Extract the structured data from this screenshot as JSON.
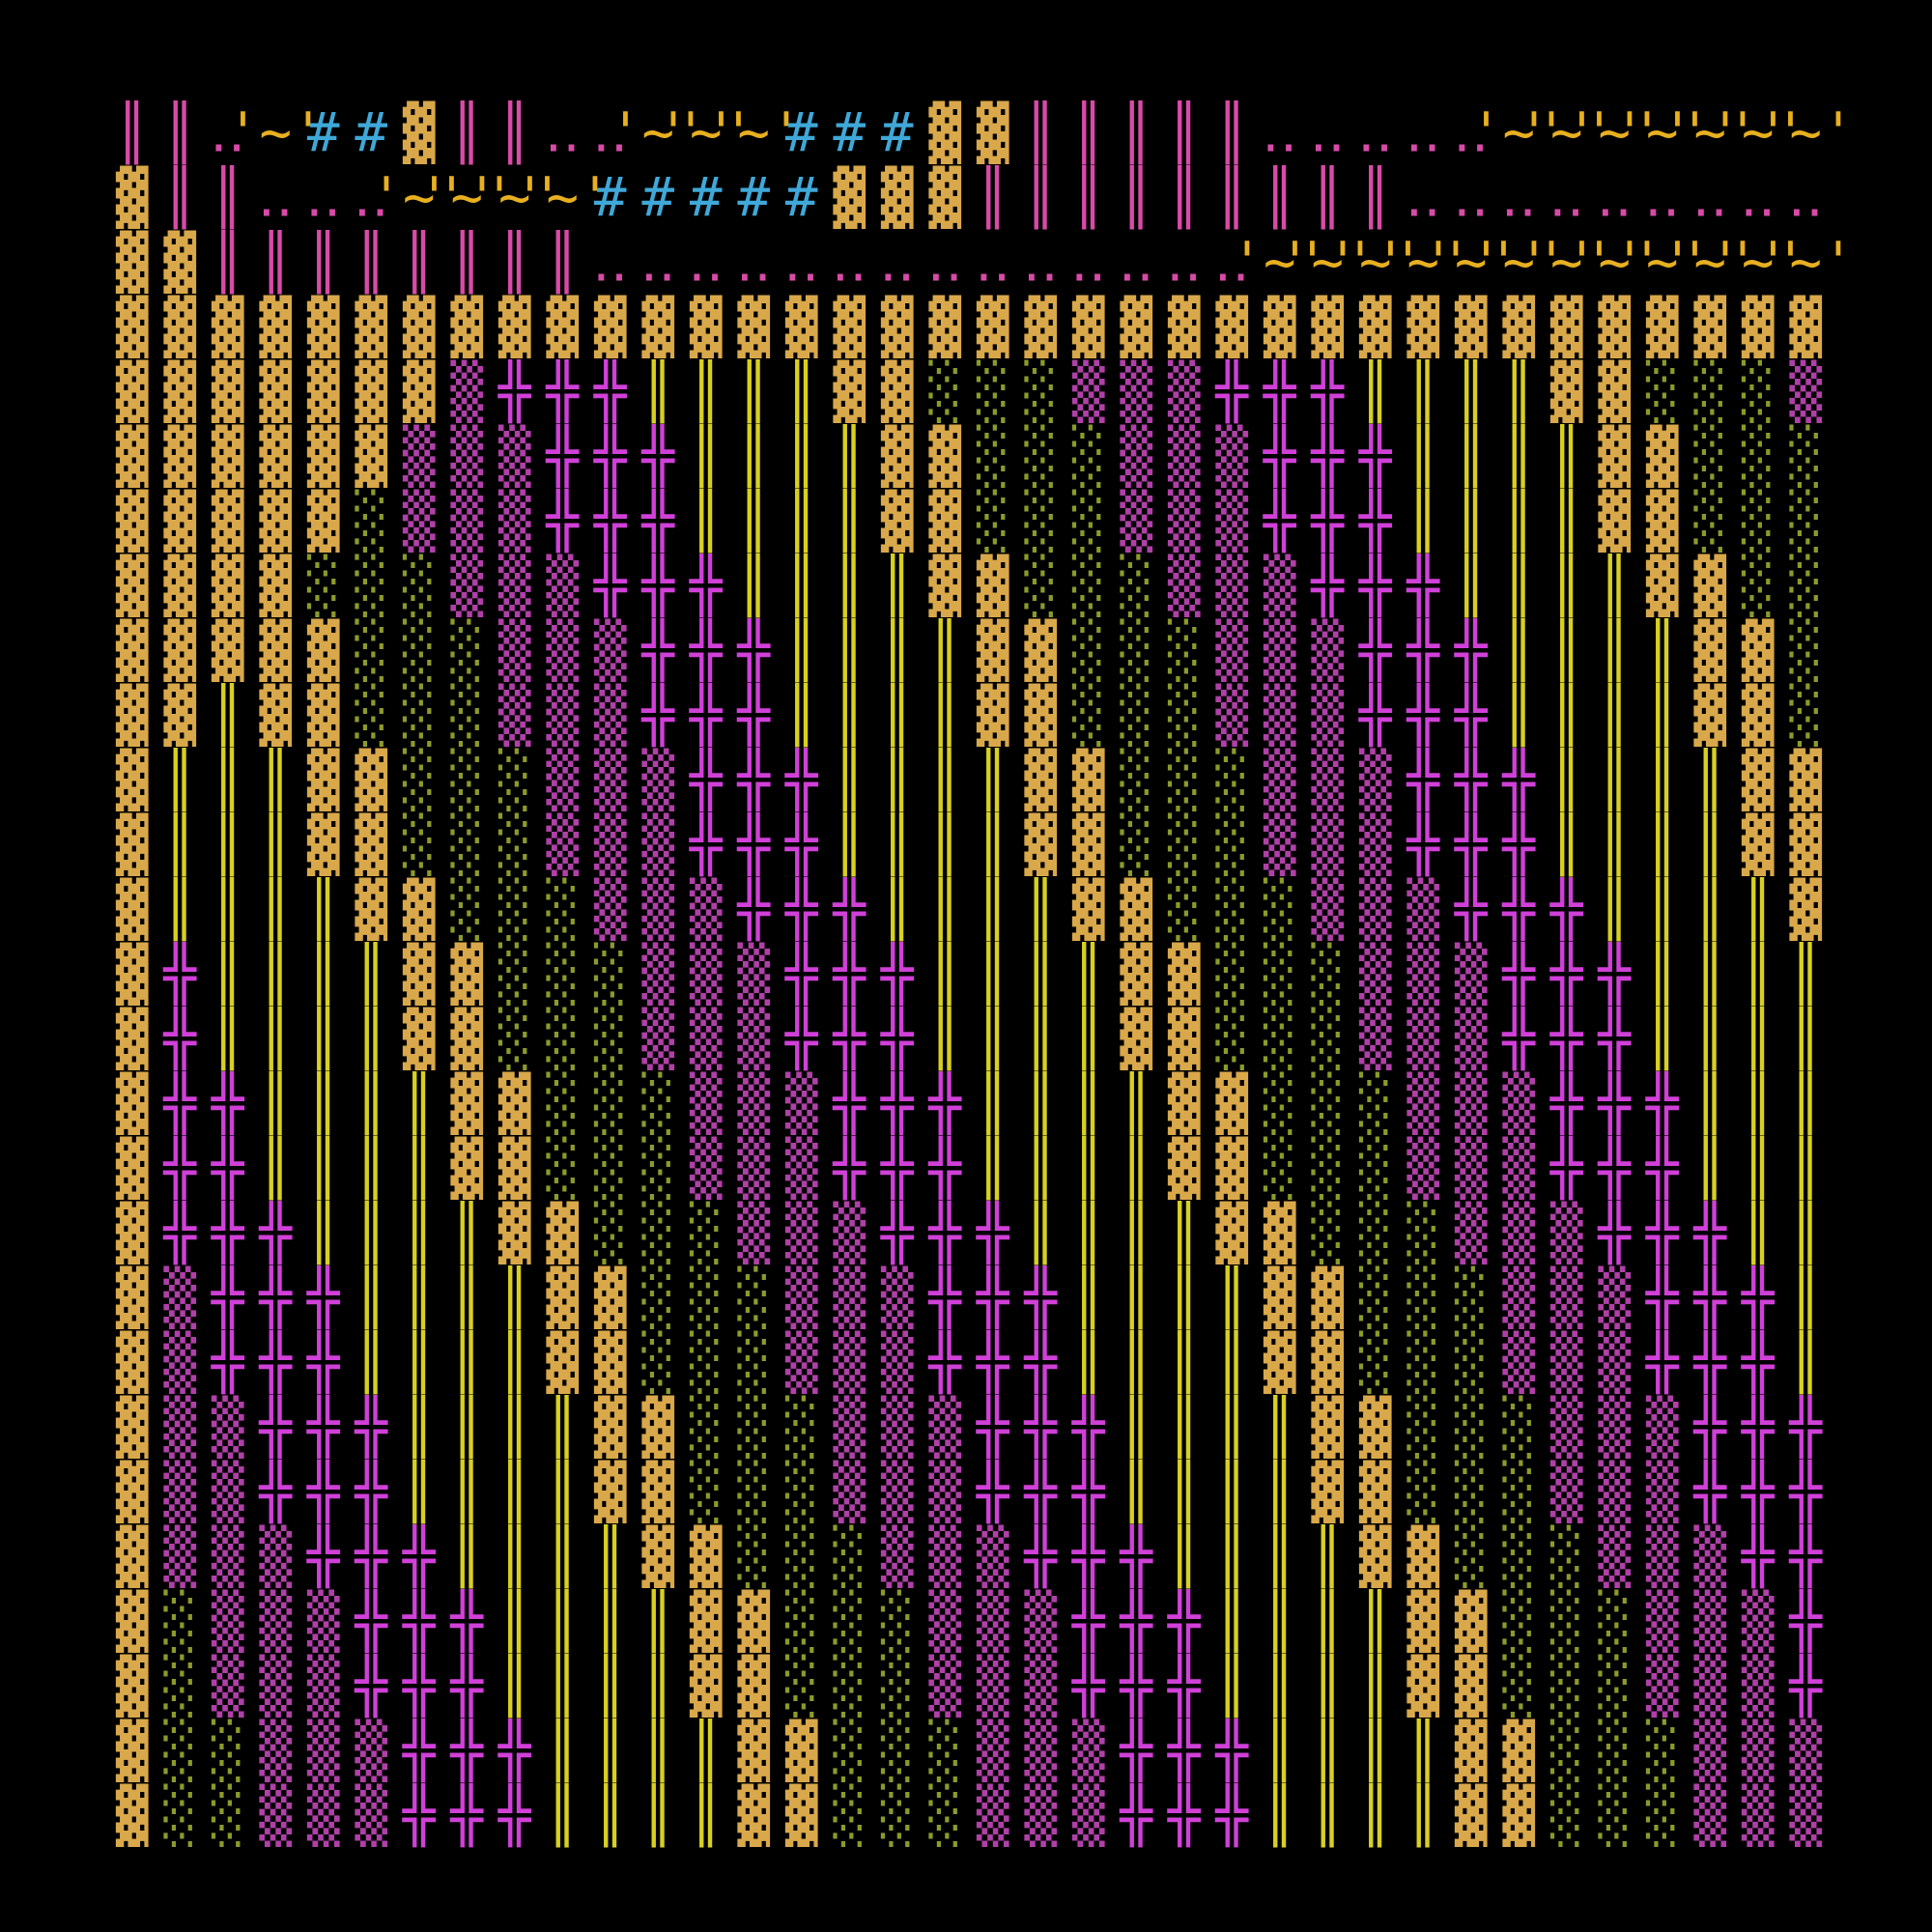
{
  "colors": {
    "background": "#000000",
    "pink": "#d94aa8",
    "yellow": "#e8b020",
    "cyan": "#3fa8d8",
    "block": "#d9a84a",
    "green_dots": "#8d9a2a",
    "magenta_dots": "#b040a8",
    "cross": "#d040d8",
    "bars": "#d8d020"
  },
  "glyphs": {
    "bar": "║",
    "dots": "‥",
    "tilde": "'~'",
    "hash": "#",
    "block": "▓",
    "green": "░",
    "pink": "▒",
    "cross": "╬",
    "yellow": "║"
  }
}
